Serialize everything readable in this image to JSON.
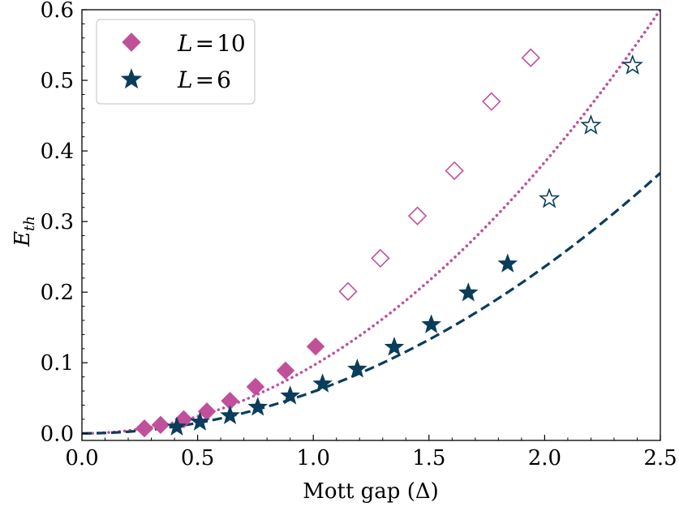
{
  "chart_data": {
    "type": "scatter",
    "xlabel": "Mott gap (Δ)",
    "ylabel": "E",
    "ylabel_sub": "th",
    "xlim": [
      0.0,
      2.5
    ],
    "ylim": [
      -0.01,
      0.6
    ],
    "xticks": [
      "0.0",
      "0.5",
      "1.0",
      "1.5",
      "2.0",
      "2.5"
    ],
    "yticks": [
      "0.0",
      "0.1",
      "0.2",
      "0.3",
      "0.4",
      "0.5",
      "0.6"
    ],
    "grid": false,
    "legend_placement": "top-left",
    "series": [
      {
        "name": "L = 10",
        "legend_var": "L",
        "legend_eq": "=",
        "legend_val": "10",
        "marker": "diamond",
        "color": "#c0509a",
        "filled": [
          {
            "x": 0.27,
            "y": 0.007
          },
          {
            "x": 0.34,
            "y": 0.012
          },
          {
            "x": 0.44,
            "y": 0.02
          },
          {
            "x": 0.54,
            "y": 0.031
          },
          {
            "x": 0.64,
            "y": 0.046
          },
          {
            "x": 0.75,
            "y": 0.066
          },
          {
            "x": 0.88,
            "y": 0.089
          },
          {
            "x": 1.01,
            "y": 0.123
          }
        ],
        "open": [
          {
            "x": 1.15,
            "y": 0.201
          },
          {
            "x": 1.29,
            "y": 0.248
          },
          {
            "x": 1.45,
            "y": 0.308
          },
          {
            "x": 1.61,
            "y": 0.372
          },
          {
            "x": 1.77,
            "y": 0.47
          },
          {
            "x": 1.94,
            "y": 0.532
          }
        ]
      },
      {
        "name": "L = 6",
        "legend_var": "L",
        "legend_eq": "=",
        "legend_val": "6",
        "marker": "star",
        "color": "#0a3d5c",
        "filled": [
          {
            "x": 0.41,
            "y": 0.009
          },
          {
            "x": 0.51,
            "y": 0.016
          },
          {
            "x": 0.64,
            "y": 0.025
          },
          {
            "x": 0.76,
            "y": 0.037
          },
          {
            "x": 0.9,
            "y": 0.053
          },
          {
            "x": 1.04,
            "y": 0.07
          },
          {
            "x": 1.19,
            "y": 0.091
          },
          {
            "x": 1.35,
            "y": 0.122
          },
          {
            "x": 1.51,
            "y": 0.154
          },
          {
            "x": 1.67,
            "y": 0.199
          },
          {
            "x": 1.84,
            "y": 0.24
          }
        ],
        "open": [
          {
            "x": 2.02,
            "y": 0.332
          },
          {
            "x": 2.2,
            "y": 0.436
          },
          {
            "x": 2.38,
            "y": 0.521
          }
        ]
      }
    ],
    "fit_curves": [
      {
        "series": "L = 10",
        "style": "dotted",
        "color": "#c0509a",
        "coefficient": 0.096,
        "exponent": 2
      },
      {
        "series": "L = 6",
        "style": "dashed",
        "color": "#0a3d5c",
        "coefficient": 0.059,
        "exponent": 2
      }
    ]
  }
}
